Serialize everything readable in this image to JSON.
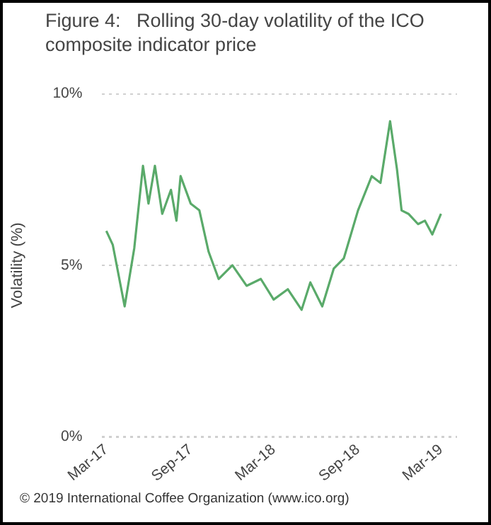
{
  "chart_data": {
    "type": "line",
    "title": "Figure 4:   Rolling 30-day volatility of the ICO composite indicator price",
    "ylabel": "Volatility (%)",
    "annotations": [
      "© 2019 International Coffee Organization (www.ico.org)"
    ],
    "x": [
      "2017-03-01",
      "2017-03-15",
      "2017-04-10",
      "2017-05-01",
      "2017-05-20",
      "2017-06-01",
      "2017-06-15",
      "2017-07-01",
      "2017-07-20",
      "2017-08-01",
      "2017-08-10",
      "2017-09-01",
      "2017-09-20",
      "2017-10-10",
      "2017-11-01",
      "2017-12-01",
      "2018-01-01",
      "2018-02-01",
      "2018-03-01",
      "2018-04-01",
      "2018-05-01",
      "2018-05-20",
      "2018-06-15",
      "2018-07-10",
      "2018-08-01",
      "2018-09-01",
      "2018-10-01",
      "2018-10-20",
      "2018-11-10",
      "2018-11-25",
      "2018-12-05",
      "2018-12-20",
      "2019-01-10",
      "2019-01-25",
      "2019-02-10",
      "2019-03-01"
    ],
    "series": [
      {
        "color": "#5aaa6a",
        "values": [
          6.0,
          5.6,
          3.8,
          5.5,
          7.9,
          6.8,
          7.9,
          6.5,
          7.2,
          6.3,
          7.6,
          6.8,
          6.6,
          5.4,
          4.6,
          5.0,
          4.4,
          4.6,
          4.0,
          4.3,
          3.7,
          4.5,
          3.8,
          4.9,
          5.2,
          6.6,
          7.6,
          7.4,
          9.2,
          7.8,
          6.6,
          6.5,
          6.2,
          6.3,
          5.9,
          6.5
        ]
      }
    ],
    "xlim": [
      "2017-02-20",
      "2019-04-05"
    ],
    "xticks": [
      {
        "value": "2017-03-01",
        "label": "Mar-17"
      },
      {
        "value": "2017-09-01",
        "label": "Sep-17"
      },
      {
        "value": "2018-03-01",
        "label": "Mar-18"
      },
      {
        "value": "2018-09-01",
        "label": "Sep-18"
      },
      {
        "value": "2019-03-01",
        "label": "Mar-19"
      }
    ],
    "ylim": [
      0,
      10
    ],
    "yticks": [
      {
        "value": 0,
        "label": "0%"
      },
      {
        "value": 5,
        "label": "5%"
      },
      {
        "value": 10,
        "label": "10%"
      }
    ],
    "grid": "y",
    "legend": false,
    "marker": "none",
    "line_style": "solid"
  }
}
